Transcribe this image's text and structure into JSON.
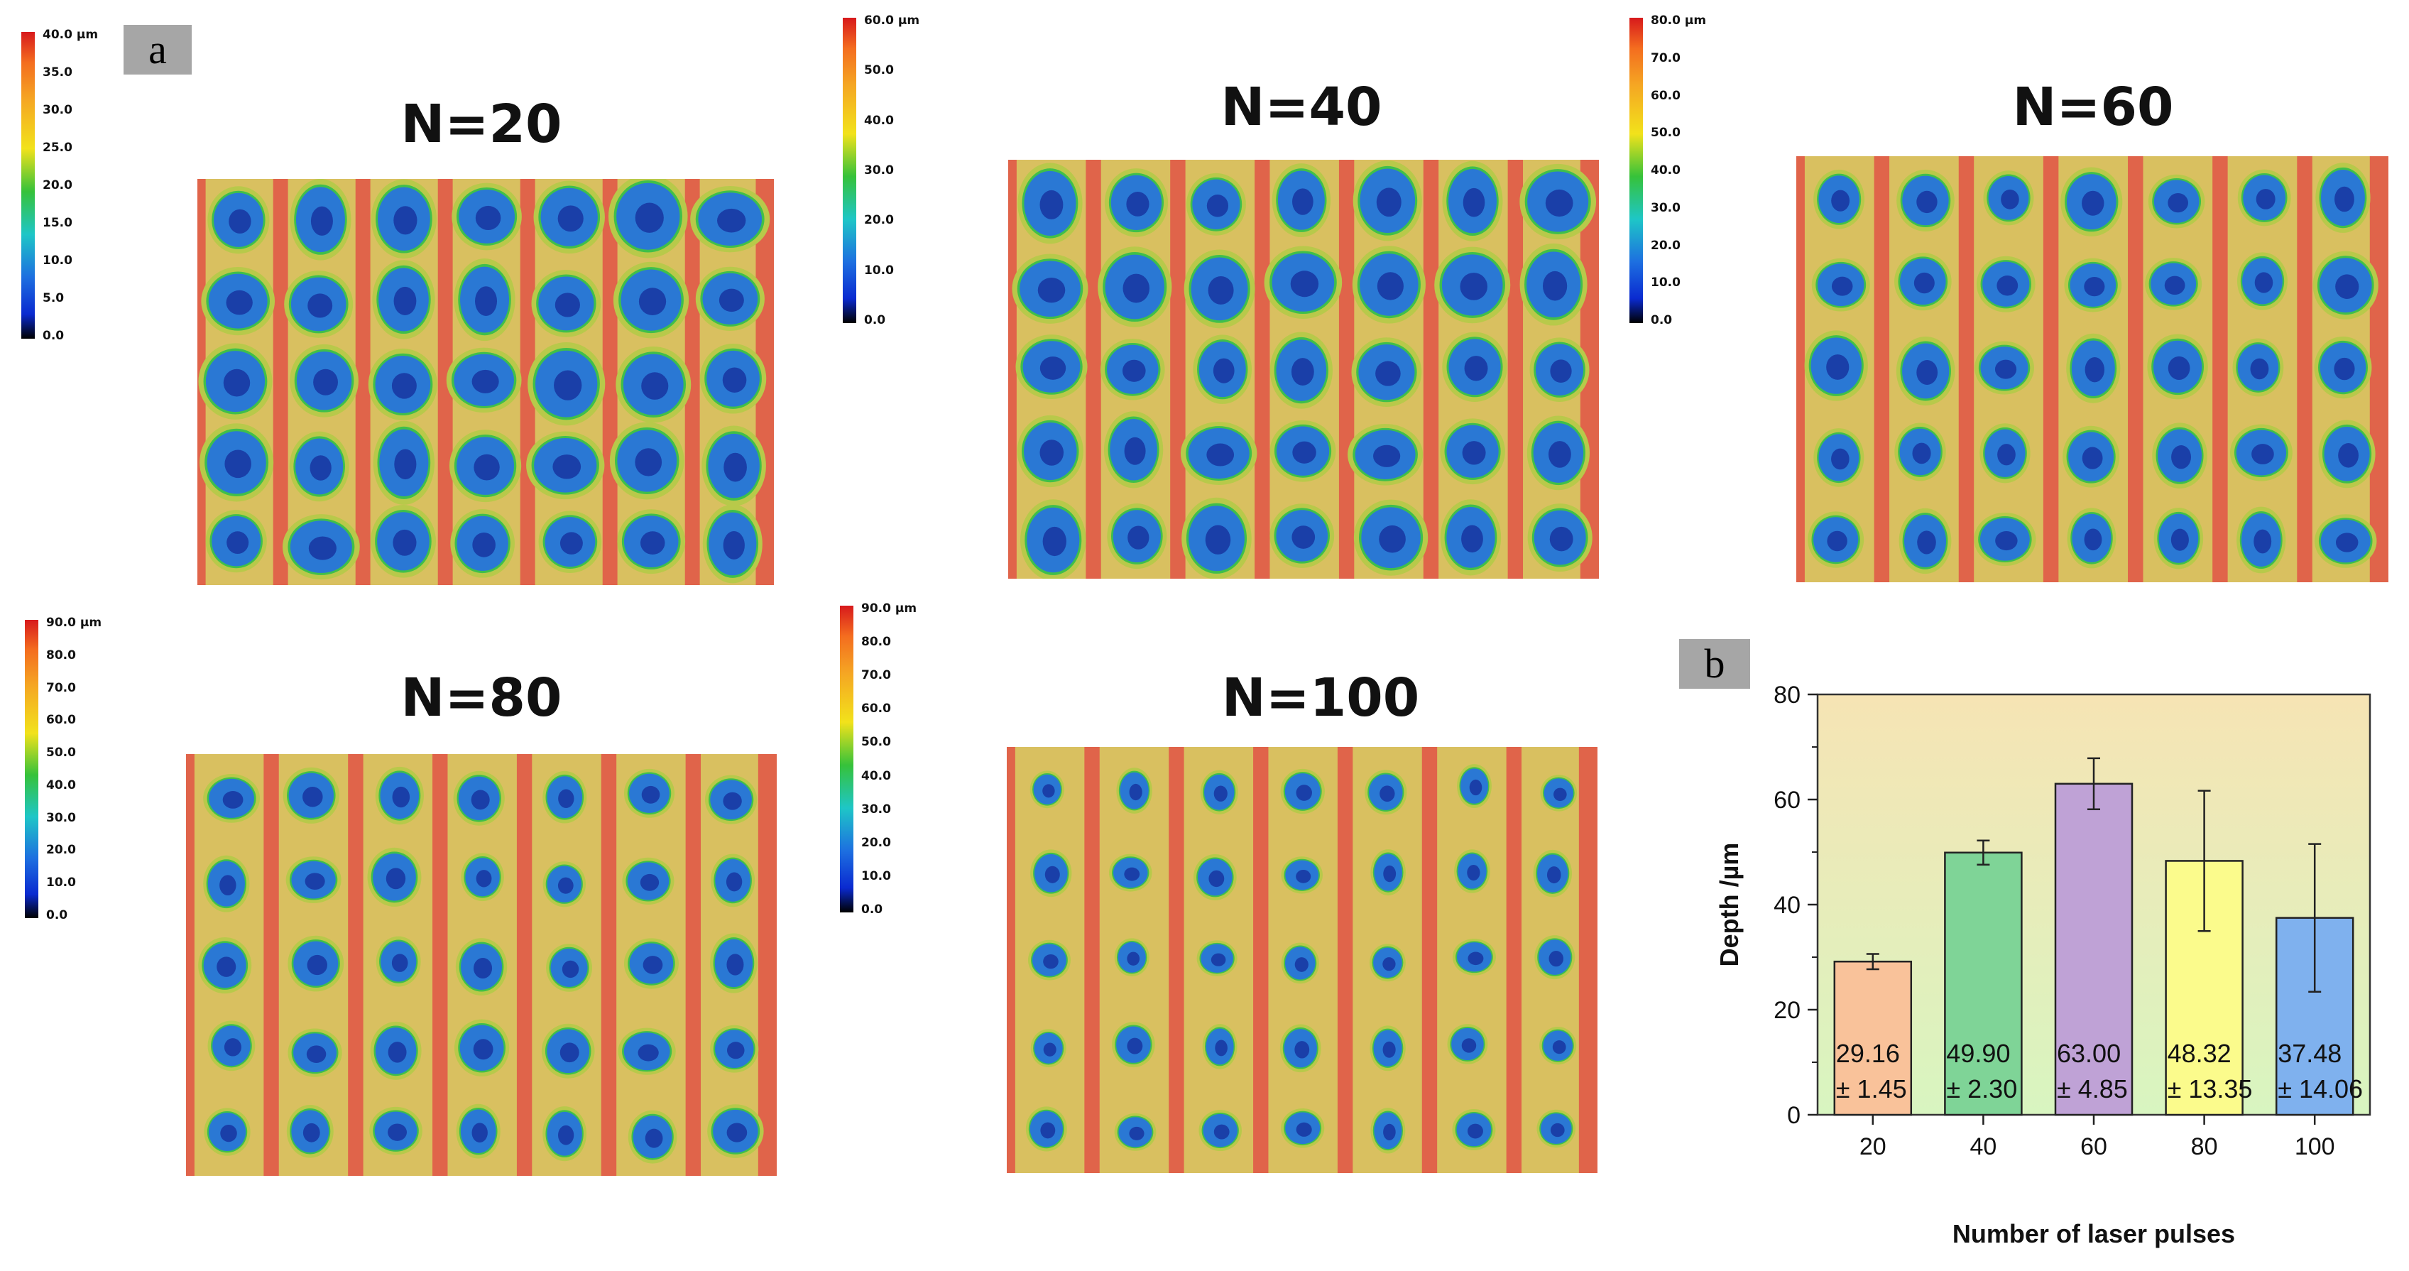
{
  "panel_a": {
    "label": "a",
    "maps": [
      {
        "title": "N=20",
        "scale": [
          "40.0 µm",
          "35.0",
          "30.0",
          "25.0",
          "20.0",
          "15.0",
          "10.0",
          "5.0",
          "0.0"
        ]
      },
      {
        "title": "N=40",
        "scale": [
          "60.0 µm",
          "50.0",
          "40.0",
          "30.0",
          "20.0",
          "10.0",
          "0.0"
        ]
      },
      {
        "title": "N=60",
        "scale": [
          "80.0 µm",
          "70.0",
          "60.0",
          "50.0",
          "40.0",
          "30.0",
          "20.0",
          "10.0",
          "0.0"
        ]
      },
      {
        "title": "N=80",
        "scale": [
          "90.0 µm",
          "80.0",
          "70.0",
          "60.0",
          "50.0",
          "40.0",
          "30.0",
          "20.0",
          "10.0",
          "0.0"
        ]
      },
      {
        "title": "N=100",
        "scale": [
          "90.0 µm",
          "80.0",
          "70.0",
          "60.0",
          "50.0",
          "40.0",
          "30.0",
          "20.0",
          "10.0",
          "0.0"
        ]
      }
    ],
    "colors": {
      "ridge": "#e0644a",
      "groove": "#d9c060",
      "edge": "#3fbf4a",
      "pit": "#2a78d4",
      "pit_core": "#1a3fa8"
    }
  },
  "panel_b": {
    "label": "b"
  },
  "chart_data": {
    "type": "bar",
    "xlabel": "Number of laser pulses",
    "ylabel": "Depth /µm",
    "categories": [
      "20",
      "40",
      "60",
      "80",
      "100"
    ],
    "values": [
      29.16,
      49.9,
      63.0,
      48.32,
      37.48
    ],
    "errors": [
      1.45,
      2.3,
      4.85,
      13.35,
      14.06
    ],
    "value_labels": [
      "29.16",
      "49.90",
      "63.00",
      "48.32",
      "37.48"
    ],
    "error_labels": [
      "± 1.45",
      "± 2.30",
      "± 4.85",
      "± 13.35",
      "± 14.06"
    ],
    "ylim": [
      0,
      80
    ],
    "yticks": [
      "0",
      "20",
      "40",
      "60",
      "80"
    ],
    "bar_colors": [
      "#f9c29a",
      "#7fd497",
      "#bfa2d6",
      "#fbfb8c",
      "#7fb1ee"
    ],
    "background": {
      "top": "#f6e4b4",
      "bottom": "#d8f5c0"
    },
    "grid": false,
    "legend": "none"
  }
}
